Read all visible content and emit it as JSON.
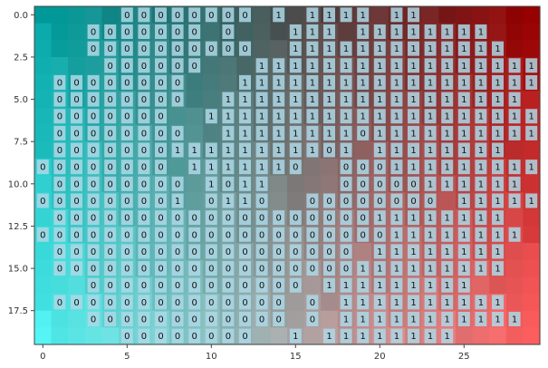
{
  "chart_data": {
    "type": "heatmap",
    "title": "",
    "xlabel": "",
    "ylabel": "",
    "n_cols": 30,
    "n_rows": 20,
    "xlim": [
      -0.5,
      29.5
    ],
    "ylim": [
      19.5,
      -0.5
    ],
    "x_ticks": [
      0,
      5,
      10,
      15,
      20,
      25
    ],
    "x_tick_labels": [
      "0",
      "5",
      "10",
      "15",
      "20",
      "25"
    ],
    "y_ticks": [
      0,
      2.5,
      5,
      7.5,
      10,
      12.5,
      15,
      17.5
    ],
    "y_tick_labels": [
      "0.0",
      "2.5",
      "5.0",
      "7.5",
      "10.0",
      "12.5",
      "15.0",
      "17.5"
    ],
    "grid": false,
    "legend": "none",
    "colors": {
      "top_left": "#00a0a0",
      "top_right": "#960000",
      "bottom_left": "#50f0f0",
      "bottom_right": "#ff6060",
      "label_box": "#add8e6"
    },
    "labels": [
      "     00000000 1 1111 11    ",
      "   0000000 0   111 11111111 ",
      "   0000000000  1111111111111",
      "    000000   11111111111111111",
      " 00000000   111111111111111111",
      " 00000000  111111111111111111",
      " 0000000  11111111111111111111",
      " 00000000  1111111101111111111",
      " 000000011111111101 11111111",
      "00000000 1111110  000111111111",
      " 00000000 1011    00000111111 1",
      "000000001 0110  00000000 111111",
      " 000000000000000000011111111",
      "00000000000000000000011111111",
      " 000000000000000000 11111111",
      " 000000000000000000111111111",
      "   0000000000000 111111111",
      " 00000000000000 0 1111111111",
      "   000000000000 0 11111111111",
      "     00000000  1 11111111    "
    ]
  }
}
